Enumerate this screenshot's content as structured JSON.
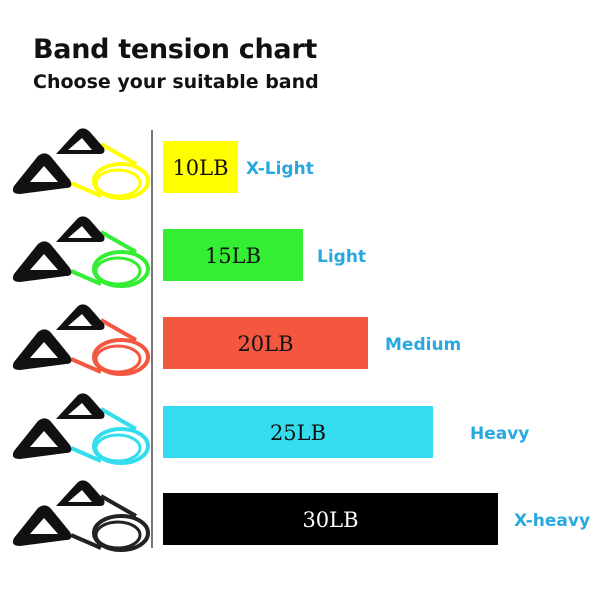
{
  "header": {
    "title": "Band tension chart",
    "subtitle": "Choose your suitable band"
  },
  "chart_data": {
    "type": "bar",
    "orientation": "horizontal",
    "categories": [
      "X-Light",
      "Light",
      "Medium",
      "Heavy",
      "X-heavy"
    ],
    "values": [
      10,
      15,
      20,
      25,
      30
    ],
    "data_labels": [
      "10LB",
      "15LB",
      "20LB",
      "25LB",
      "30LB"
    ],
    "unit": "LB",
    "colors": [
      "#ffff00",
      "#33ee33",
      "#f4573f",
      "#33ddee",
      "#000000"
    ],
    "label_text_colors": [
      "#111111",
      "#111111",
      "#111111",
      "#111111",
      "#ffffff"
    ],
    "category_label_color": "#29a8e0",
    "grid": false,
    "legend": "none",
    "icons": [
      "resistance-band-yellow-icon",
      "resistance-band-green-icon",
      "resistance-band-red-icon",
      "resistance-band-cyan-icon",
      "resistance-band-black-icon"
    ]
  }
}
